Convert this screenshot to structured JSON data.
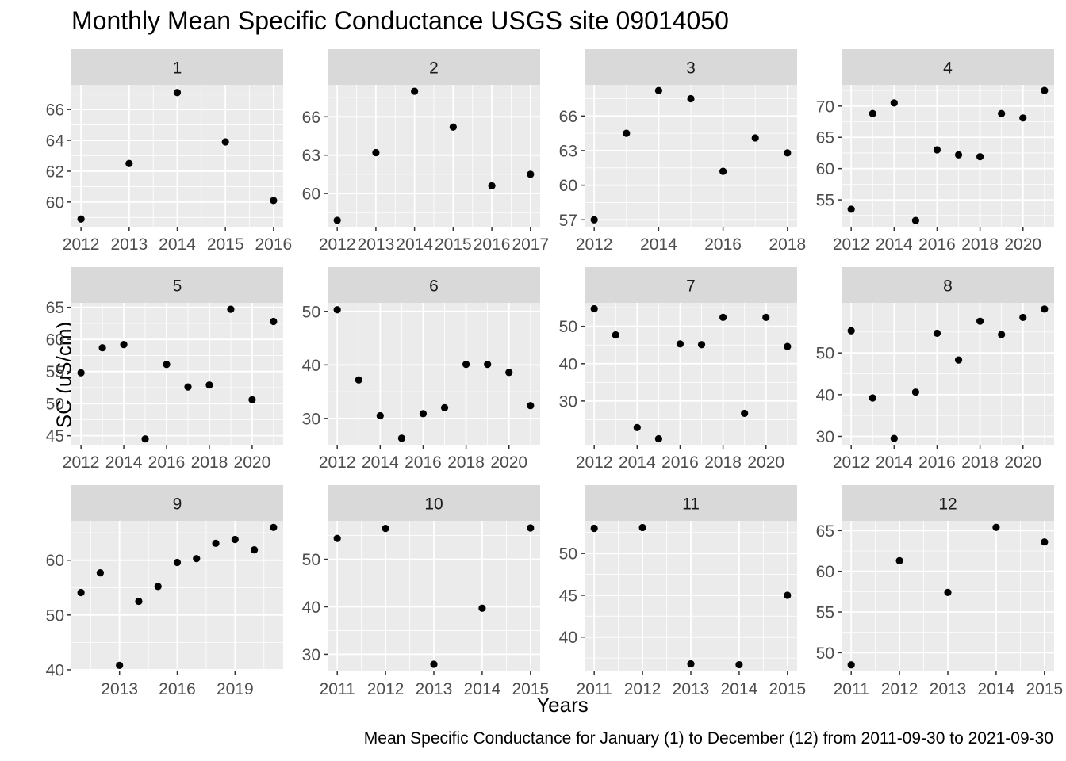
{
  "figure": {
    "title": "Monthly Mean Specific Conductance USGS site 09014050",
    "xlabel": "Years",
    "ylabel": "SC (uS/cm)",
    "caption": "Mean Specific Conductance for January (1) to December (12) from 2011-09-30 to 2021-09-30",
    "colors": {
      "panel_bg": "#ebebeb",
      "strip_bg": "#d9d9d9",
      "grid": "#ffffff",
      "point": "#000000",
      "tick_text": "#4d4d4d"
    }
  },
  "chart_data": [
    {
      "type": "scatter",
      "panel": "1",
      "x": [
        2012,
        2013,
        2014,
        2015,
        2016
      ],
      "y": [
        58.9,
        62.5,
        67.1,
        63.9,
        60.1
      ],
      "xlim": [
        2011.8,
        2016.2
      ],
      "ylim": [
        58.4,
        67.6
      ],
      "xticks": [
        2012,
        2013,
        2014,
        2015,
        2016
      ],
      "yticks": [
        60,
        62,
        64,
        66
      ]
    },
    {
      "type": "scatter",
      "panel": "2",
      "x": [
        2012,
        2013,
        2014,
        2015,
        2016,
        2017
      ],
      "y": [
        57.9,
        63.2,
        68.0,
        65.2,
        60.6,
        61.5
      ],
      "xlim": [
        2011.75,
        2017.25
      ],
      "ylim": [
        57.4,
        68.5
      ],
      "xticks": [
        2012,
        2013,
        2014,
        2015,
        2016,
        2017
      ],
      "yticks": [
        60,
        63,
        66
      ]
    },
    {
      "type": "scatter",
      "panel": "3",
      "x": [
        2012,
        2013,
        2014,
        2015,
        2016,
        2017,
        2018
      ],
      "y": [
        57.0,
        64.5,
        68.2,
        67.5,
        61.2,
        64.1,
        62.8
      ],
      "xlim": [
        2011.7,
        2018.3
      ],
      "ylim": [
        56.4,
        68.7
      ],
      "xticks": [
        2012,
        2014,
        2016,
        2018
      ],
      "yticks": [
        57,
        60,
        63,
        66
      ]
    },
    {
      "type": "scatter",
      "panel": "4",
      "x": [
        2012,
        2013,
        2014,
        2015,
        2016,
        2017,
        2018,
        2019,
        2020,
        2021
      ],
      "y": [
        53.5,
        68.8,
        70.5,
        51.7,
        63.0,
        62.2,
        61.9,
        68.8,
        68.1,
        72.5
      ],
      "xlim": [
        2011.55,
        2021.45
      ],
      "ylim": [
        50.7,
        73.4
      ],
      "xticks": [
        2012,
        2014,
        2016,
        2018,
        2020
      ],
      "yticks": [
        55,
        60,
        65,
        70
      ]
    },
    {
      "type": "scatter",
      "panel": "5",
      "x": [
        2012,
        2013,
        2014,
        2015,
        2016,
        2017,
        2018,
        2019,
        2020,
        2021
      ],
      "y": [
        54.8,
        58.7,
        59.2,
        44.5,
        56.1,
        52.6,
        52.9,
        64.7,
        50.6,
        62.8
      ],
      "xlim": [
        2011.55,
        2021.45
      ],
      "ylim": [
        43.6,
        65.7
      ],
      "xticks": [
        2012,
        2014,
        2016,
        2018,
        2020
      ],
      "yticks": [
        45,
        50,
        55,
        60,
        65
      ]
    },
    {
      "type": "scatter",
      "panel": "6",
      "x": [
        2012,
        2013,
        2014,
        2015,
        2016,
        2017,
        2018,
        2019,
        2020,
        2021
      ],
      "y": [
        50.3,
        37.2,
        30.5,
        26.3,
        30.9,
        32.0,
        40.1,
        40.1,
        38.6,
        32.4
      ],
      "xlim": [
        2011.55,
        2021.45
      ],
      "ylim": [
        25.1,
        51.6
      ],
      "xticks": [
        2012,
        2014,
        2016,
        2018,
        2020
      ],
      "yticks": [
        30,
        40,
        50
      ]
    },
    {
      "type": "scatter",
      "panel": "7",
      "x": [
        2012,
        2013,
        2014,
        2015,
        2016,
        2017,
        2018,
        2019,
        2020,
        2021
      ],
      "y": [
        54.7,
        47.7,
        22.9,
        19.9,
        45.3,
        45.1,
        52.4,
        26.7,
        52.4,
        44.6
      ],
      "xlim": [
        2011.55,
        2021.45
      ],
      "ylim": [
        18.3,
        56.3
      ],
      "xticks": [
        2012,
        2014,
        2016,
        2018,
        2020
      ],
      "yticks": [
        30,
        40,
        50
      ]
    },
    {
      "type": "scatter",
      "panel": "8",
      "x": [
        2012,
        2013,
        2014,
        2015,
        2016,
        2017,
        2018,
        2019,
        2020,
        2021
      ],
      "y": [
        55.3,
        39.2,
        29.5,
        40.6,
        54.7,
        48.3,
        57.6,
        54.4,
        58.5,
        60.5
      ],
      "xlim": [
        2011.55,
        2021.45
      ],
      "ylim": [
        28.0,
        62.0
      ],
      "xticks": [
        2012,
        2014,
        2016,
        2018,
        2020
      ],
      "yticks": [
        30,
        40,
        50
      ]
    },
    {
      "type": "scatter",
      "panel": "9",
      "x": [
        2011,
        2012,
        2013,
        2014,
        2015,
        2016,
        2017,
        2018,
        2019,
        2020,
        2021
      ],
      "y": [
        54.1,
        57.7,
        40.8,
        52.5,
        55.2,
        59.6,
        60.3,
        63.1,
        63.8,
        61.9,
        66.0
      ],
      "xlim": [
        2010.5,
        2021.5
      ],
      "ylim": [
        39.7,
        67.2
      ],
      "xticks": [
        2013,
        2016,
        2019
      ],
      "yticks": [
        40,
        50,
        60
      ]
    },
    {
      "type": "scatter",
      "panel": "10",
      "x": [
        2011,
        2012,
        2013,
        2014,
        2015
      ],
      "y": [
        54.4,
        56.5,
        27.9,
        39.7,
        56.6
      ],
      "xlim": [
        2010.8,
        2015.2
      ],
      "ylim": [
        26.4,
        58.1
      ],
      "xticks": [
        2011,
        2012,
        2013,
        2014,
        2015
      ],
      "yticks": [
        30,
        40,
        50
      ]
    },
    {
      "type": "scatter",
      "panel": "11",
      "x": [
        2011,
        2012,
        2013,
        2014,
        2015
      ],
      "y": [
        53.0,
        53.1,
        36.8,
        36.7,
        45.0
      ],
      "xlim": [
        2010.8,
        2015.2
      ],
      "ylim": [
        35.9,
        53.9
      ],
      "xticks": [
        2011,
        2012,
        2013,
        2014,
        2015
      ],
      "yticks": [
        40,
        45,
        50
      ]
    },
    {
      "type": "scatter",
      "panel": "12",
      "x": [
        2011,
        2012,
        2013,
        2014,
        2015
      ],
      "y": [
        48.5,
        61.3,
        57.4,
        65.4,
        63.6
      ],
      "xlim": [
        2010.8,
        2015.2
      ],
      "ylim": [
        47.7,
        66.2
      ],
      "xticks": [
        2011,
        2012,
        2013,
        2014,
        2015
      ],
      "yticks": [
        50,
        55,
        60,
        65
      ]
    }
  ]
}
